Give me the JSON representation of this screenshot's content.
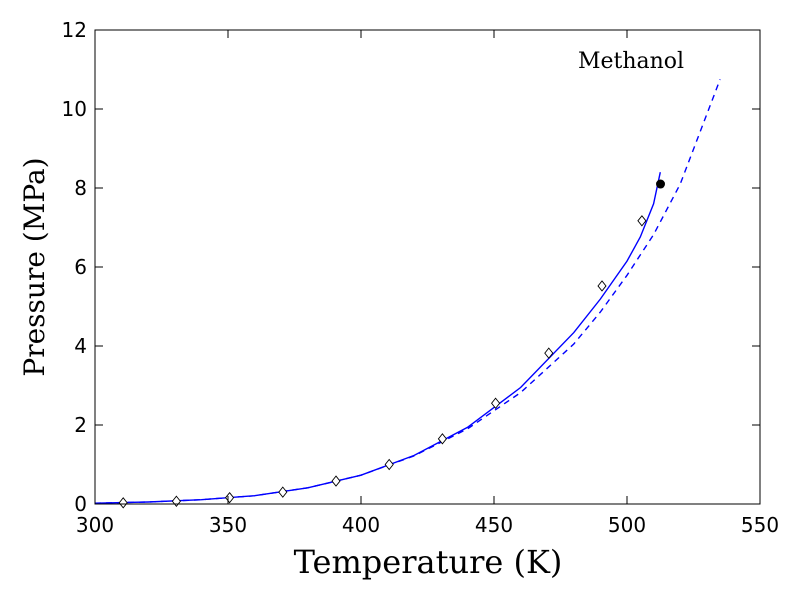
{
  "chart_data": {
    "type": "line",
    "title": "",
    "xlabel": "Temperature (K)",
    "ylabel": "Pressure (MPa)",
    "annotation": "Methanol",
    "xlim": [
      300,
      550
    ],
    "ylim": [
      0,
      12
    ],
    "xticks": [
      300,
      350,
      400,
      450,
      500,
      550
    ],
    "yticks": [
      0,
      2,
      4,
      6,
      8,
      10,
      12
    ],
    "grid": false,
    "legend": "none",
    "line_color": "#0000ff",
    "series": [
      {
        "style": "solid-line",
        "x": [
          300,
          320,
          340,
          360,
          380,
          400,
          420,
          440,
          460,
          480,
          490,
          500,
          505,
          510,
          512.5
        ],
        "y": [
          0.02,
          0.05,
          0.11,
          0.21,
          0.41,
          0.73,
          1.23,
          1.94,
          2.95,
          4.34,
          5.19,
          6.15,
          6.76,
          7.6,
          8.4
        ]
      },
      {
        "style": "dashed-line",
        "x": [
          300,
          320,
          340,
          360,
          380,
          400,
          420,
          440,
          460,
          480,
          490,
          500,
          510,
          520,
          535
        ],
        "y": [
          0.02,
          0.05,
          0.11,
          0.21,
          0.41,
          0.73,
          1.22,
          1.9,
          2.82,
          4.05,
          4.86,
          5.79,
          6.82,
          8.1,
          10.75
        ]
      },
      {
        "style": "open-diamond-markers",
        "x": [
          310.6,
          330.6,
          350.6,
          370.6,
          390.6,
          410.6,
          430.6,
          450.6,
          470.6,
          490.6,
          505.6
        ],
        "y": [
          0.03,
          0.07,
          0.16,
          0.3,
          0.58,
          1.0,
          1.65,
          2.55,
          3.82,
          5.52,
          7.17
        ]
      },
      {
        "style": "filled-circle-marker",
        "x": [
          512.6
        ],
        "y": [
          8.1
        ]
      }
    ]
  }
}
